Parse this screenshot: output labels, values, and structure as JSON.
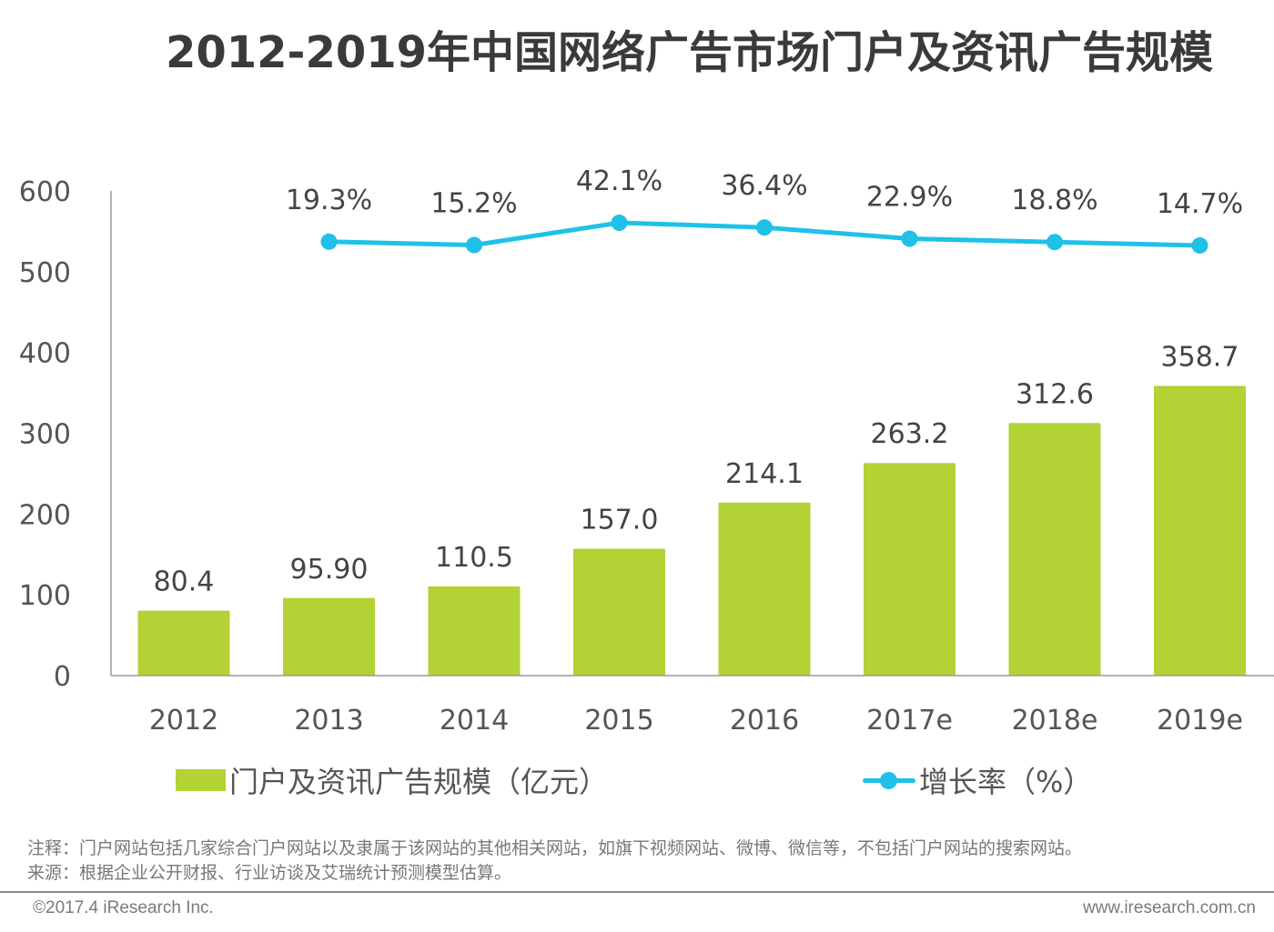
{
  "title": "2012-2019年中国网络广告市场门户及资讯广告规模",
  "colors": {
    "bar": "#b2d235",
    "line": "#1fc1e8",
    "axis": "#9a9a9a",
    "text": "#444444"
  },
  "chart_data": {
    "type": "bar",
    "title": "2012-2019年中国网络广告市场门户及资讯广告规模",
    "xlabel": "",
    "ylabel": "",
    "categories": [
      "2012",
      "2013",
      "2014",
      "2015",
      "2016",
      "2017e",
      "2018e",
      "2019e"
    ],
    "ylim": [
      0,
      600
    ],
    "yticks": [
      0,
      100,
      200,
      300,
      400,
      500,
      600
    ],
    "grid": false,
    "legend_position": "bottom",
    "series": [
      {
        "name": "门户及资讯广告规模（亿元）",
        "type": "bar",
        "values": [
          80.4,
          95.9,
          110.5,
          157.0,
          214.1,
          263.2,
          312.6,
          358.7
        ],
        "labels": [
          "80.4",
          "95.90",
          "110.5",
          "157.0",
          "214.1",
          "263.2",
          "312.6",
          "358.7"
        ]
      },
      {
        "name": "增长率（%）",
        "type": "line",
        "secondary_axis": true,
        "values": [
          null,
          19.3,
          15.2,
          42.1,
          36.4,
          22.9,
          18.8,
          14.7
        ],
        "labels": [
          "",
          "19.3%",
          "15.2%",
          "42.1%",
          "36.4%",
          "22.9%",
          "18.8%",
          "14.7%"
        ]
      }
    ]
  },
  "legend": {
    "bar_label": "门户及资讯广告规模（亿元）",
    "line_label": "增长率（%）"
  },
  "notes": {
    "note": "注释：门户网站包括几家综合门户网站以及隶属于该网站的其他相关网站，如旗下视频网站、微博、微信等，不包括门户网站的搜索网站。",
    "source": "来源：根据企业公开财报、行业访谈及艾瑞统计预测模型估算。"
  },
  "footer": {
    "copyright": "©2017.4 iResearch Inc.",
    "website": "www.iresearch.com.cn"
  }
}
